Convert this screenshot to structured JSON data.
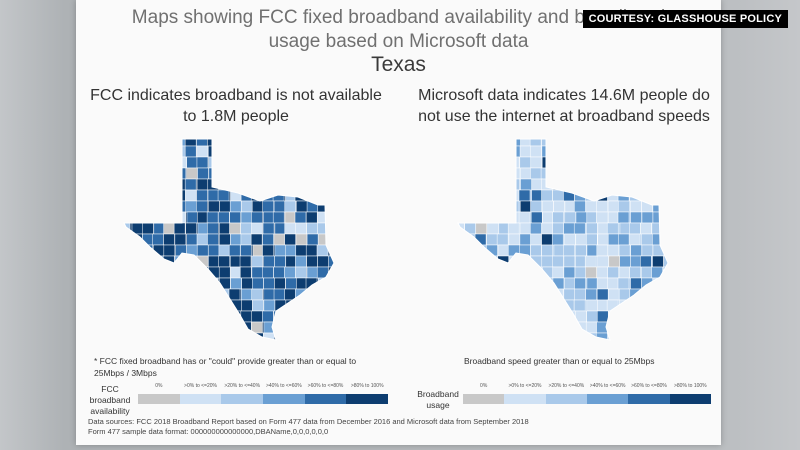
{
  "slide": {
    "title_line1": "Maps showing FCC fixed broadband availability and broadband",
    "title_line2": "usage based on Microsoft data",
    "subtitle": "Texas"
  },
  "badge": "COURTESY: GLASSHOUSE POLICY",
  "left_panel": {
    "heading_line1": "FCC indicates broadband is not available",
    "heading_line2": "to 1.8M people",
    "note_line1": "* FCC fixed broadband has or \"could\" provide greater than or equal to",
    "note_line2": "25Mbps / 3Mbps",
    "legend_label_line1": "FCC  broadband",
    "legend_label_line2": "availability",
    "legend_ticks": [
      "0%",
      ">0% to <=20%",
      ">20% to <=40%",
      ">40% to <=60%",
      ">60% to <=80%",
      ">80% to 100%"
    ],
    "legend_colors": [
      "#c8c8c8",
      "#cfe1f4",
      "#a9c9ea",
      "#6a9fd3",
      "#2f6ba8",
      "#0d3d70"
    ]
  },
  "right_panel": {
    "heading_line1": "Microsoft data indicates 14.6M people do",
    "heading_line2": "not use the internet at broadband speeds",
    "note_line1": "Broadband speed greater than or equal to 25Mbps",
    "legend_label_line1": "Broadband",
    "legend_label_line2": "usage",
    "legend_ticks": [
      "0%",
      ">0% to <=20%",
      ">20% to <=40%",
      ">40% to <=60%",
      ">60% to <=80%",
      ">80% to 100%"
    ],
    "legend_colors": [
      "#c8c8c8",
      "#cfe1f4",
      "#a9c9ea",
      "#6a9fd3",
      "#2f6ba8",
      "#0d3d70"
    ]
  },
  "sources": {
    "line1": "Data sources:  FCC 2018 Broadband Report based on Form 477 data from December 2016 and Microsoft data from September 2018",
    "line2": "Form 477 sample data format: 000000000000000,DBAName,0,0,0,0,0,0"
  }
}
